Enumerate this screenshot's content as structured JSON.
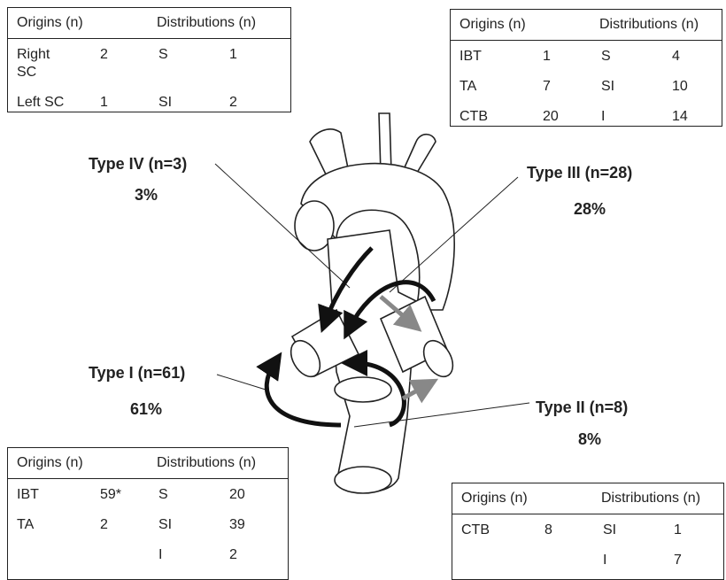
{
  "types": [
    {
      "label": "Type IV (n=3)",
      "percent": "3%",
      "table": {
        "header": [
          "Origins (n)",
          "Distributions (n)"
        ],
        "origins": [
          {
            "name": "Right SC",
            "n": 2
          },
          {
            "name": "Left SC",
            "n": 1
          }
        ],
        "distributions": [
          {
            "name": "S",
            "n": 1
          },
          {
            "name": "SI",
            "n": 2
          }
        ]
      }
    },
    {
      "label": "Type III (n=28)",
      "percent": "28%",
      "table": {
        "header": [
          "Origins (n)",
          "Distributions (n)"
        ],
        "origins": [
          {
            "name": "IBT",
            "n": 1
          },
          {
            "name": "TA",
            "n": 7
          },
          {
            "name": "CTB",
            "n": 20
          }
        ],
        "distributions": [
          {
            "name": "S",
            "n": 4
          },
          {
            "name": "SI",
            "n": 10
          },
          {
            "name": "I",
            "n": 14
          }
        ]
      }
    },
    {
      "label": "Type I (n=61)",
      "percent": "61%",
      "table": {
        "header": [
          "Origins (n)",
          "Distributions (n)"
        ],
        "origins": [
          {
            "name": "IBT",
            "n": "59*"
          },
          {
            "name": "TA",
            "n": 2
          }
        ],
        "distributions": [
          {
            "name": "S",
            "n": 20
          },
          {
            "name": "SI",
            "n": 39
          },
          {
            "name": "I",
            "n": 2
          }
        ]
      }
    },
    {
      "label": "Type II (n=8)",
      "percent": "8%",
      "table": {
        "header": [
          "Origins (n)",
          "Distributions (n)"
        ],
        "origins": [
          {
            "name": "CTB",
            "n": 8
          }
        ],
        "distributions": [
          {
            "name": "SI",
            "n": 1
          },
          {
            "name": "I",
            "n": 7
          }
        ]
      }
    }
  ]
}
